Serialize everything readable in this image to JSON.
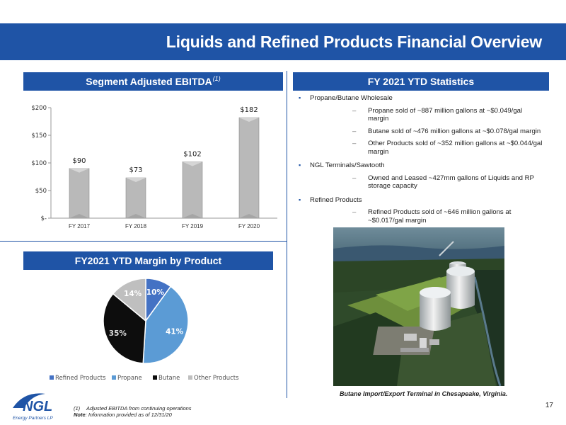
{
  "title": "Liquids and Refined Products Financial Overview",
  "sections": {
    "ebitda": {
      "title": "Segment Adjusted EBITDA",
      "sup": "(1)"
    },
    "stats": {
      "title": "FY 2021 YTD Statistics"
    },
    "margin": {
      "title": "FY2021 YTD Margin by Product"
    }
  },
  "chart_data": [
    {
      "type": "bar",
      "categories": [
        "FY 2017",
        "FY 2018",
        "FY 2019",
        "FY 2020"
      ],
      "values": [
        90,
        73,
        102,
        182
      ],
      "data_labels": [
        "$90",
        "$73",
        "$102",
        "$182"
      ],
      "yticks": [
        "$-",
        "$50",
        "$100",
        "$150",
        "$200"
      ],
      "ylim": [
        0,
        200
      ],
      "title": "",
      "xlabel": "",
      "ylabel": "",
      "bar_color": "#b9b9b9",
      "grid": false
    },
    {
      "type": "pie",
      "categories": [
        "Refined Products",
        "Propane",
        "Butane",
        "Other Products"
      ],
      "values": [
        10,
        41,
        35,
        14
      ],
      "labels": [
        "10%",
        "41%",
        "35%",
        "14%"
      ],
      "colors": [
        "#4472c4",
        "#5b9bd5",
        "#0d0d0d",
        "#bfbfbf"
      ],
      "legend": "bottom"
    }
  ],
  "stats": [
    {
      "text": "Propane/Butane Wholesale",
      "subs": [
        "Propane sold of ~887 million gallons at ~$0.049/gal margin",
        "Butane sold of ~476 million gallons at ~$0.078/gal margin",
        "Other Products sold of ~352 million gallons at ~$0.044/gal margin"
      ]
    },
    {
      "text": "NGL Terminals/Sawtooth",
      "subs": [
        "Owned and Leased ~427mm gallons of Liquids and RP storage capacity"
      ]
    },
    {
      "text": "Refined Products",
      "subs": [
        "Refined Products sold of ~646 million gallons at ~$0.017/gal margin"
      ]
    }
  ],
  "photo_caption": "Butane Import/Export Terminal in Chesapeake, Virginia.",
  "footnotes": {
    "one_num": "(1)",
    "one_text": "Adjusted EBITDA from continuing operations",
    "note_label": "Note",
    "note_text": ": Information provided as of 12/31/20"
  },
  "logo": {
    "name": "NGL",
    "subtitle": "Energy Partners LP"
  },
  "page_number": "17"
}
